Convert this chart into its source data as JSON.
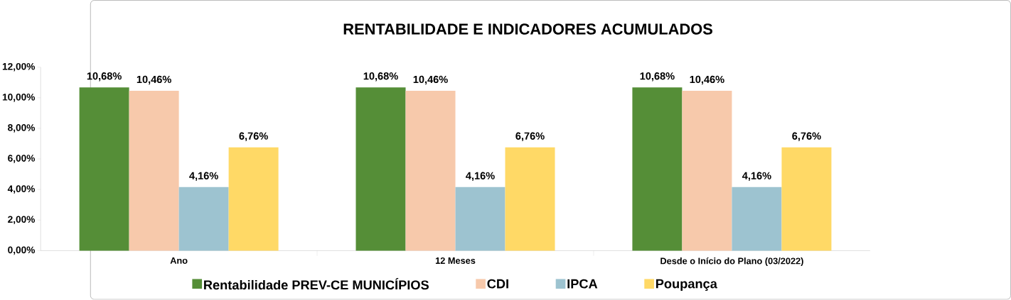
{
  "chart_data": {
    "type": "bar",
    "title": "RENTABILIDADE E INDICADORES ACUMULADOS",
    "categories": [
      "Ano",
      "12 Meses",
      "Desde o Início do Plano (03/2022)"
    ],
    "series": [
      {
        "name": "Rentabilidade PREV-CE MUNICÍPIOS",
        "color": "#558e37",
        "values": [
          10.68,
          10.68,
          10.68
        ],
        "value_labels": [
          "10,68%",
          "10,68%",
          "10,68%"
        ]
      },
      {
        "name": "CDI",
        "color": "#f7c9ab",
        "values": [
          10.46,
          10.46,
          10.46
        ],
        "value_labels": [
          "10,46%",
          "10,46%",
          "10,46%"
        ]
      },
      {
        "name": "IPCA",
        "color": "#9dc3d0",
        "values": [
          4.16,
          4.16,
          4.16
        ],
        "value_labels": [
          "4,16%",
          "4,16%",
          "4,16%"
        ]
      },
      {
        "name": "Poupança",
        "color": "#ffd966",
        "values": [
          6.76,
          6.76,
          6.76
        ],
        "value_labels": [
          "6,76%",
          "6,76%",
          "6,76%"
        ]
      }
    ],
    "ylim": [
      0,
      12
    ],
    "yticks": [
      {
        "value": 0,
        "label": "0,00%"
      },
      {
        "value": 2,
        "label": "2,00%"
      },
      {
        "value": 4,
        "label": "4,00%"
      },
      {
        "value": 6,
        "label": "6,00%"
      },
      {
        "value": 8,
        "label": "8,00%"
      },
      {
        "value": 10,
        "label": "10,00%"
      },
      {
        "value": 12,
        "label": "12,00%"
      }
    ],
    "legend": "bottom",
    "grid": false
  }
}
